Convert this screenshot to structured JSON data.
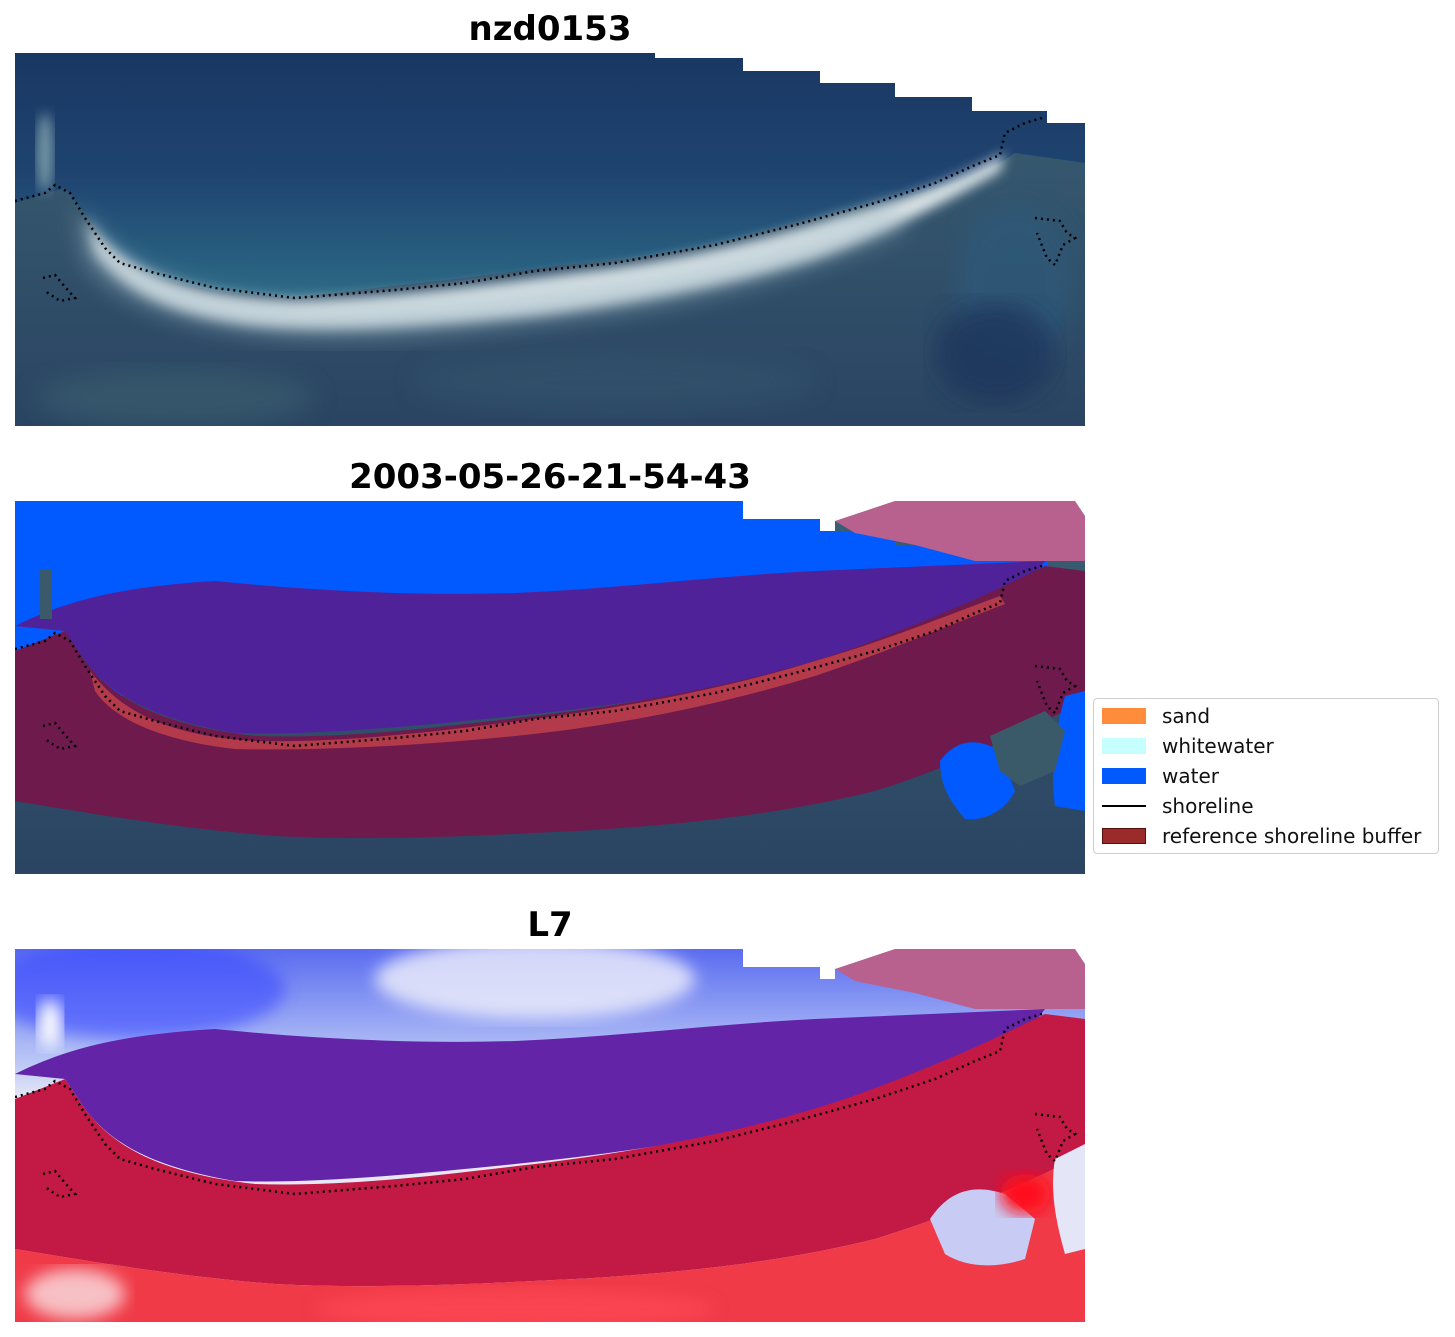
{
  "panels": [
    {
      "title": "nzd0153"
    },
    {
      "title": "2003-05-26-21-54-43"
    },
    {
      "title": "L7"
    }
  ],
  "legend": {
    "items": [
      {
        "label": "sand",
        "color": "#ff8c3a",
        "kind": "patch"
      },
      {
        "label": "whitewater",
        "color": "#c7ffff",
        "kind": "patch"
      },
      {
        "label": "water",
        "color": "#005aff",
        "kind": "patch"
      },
      {
        "label": "shoreline",
        "color": "#000000",
        "kind": "line"
      },
      {
        "label": "reference shoreline buffer",
        "color": "#9b2a2a",
        "kind": "patch"
      }
    ]
  },
  "colors": {
    "ocean_dark": "#1b3a6a",
    "beach_white": "#e8eef0",
    "vegetation": "#2b4a66",
    "classified_water": "#005aff",
    "buffer_overlay": "#7a1a4a",
    "buffer_over_water": "#50229a",
    "sand_in_buffer": "#b23a4a",
    "index_blue": "#2b3bff",
    "index_red": "#ee2233"
  }
}
